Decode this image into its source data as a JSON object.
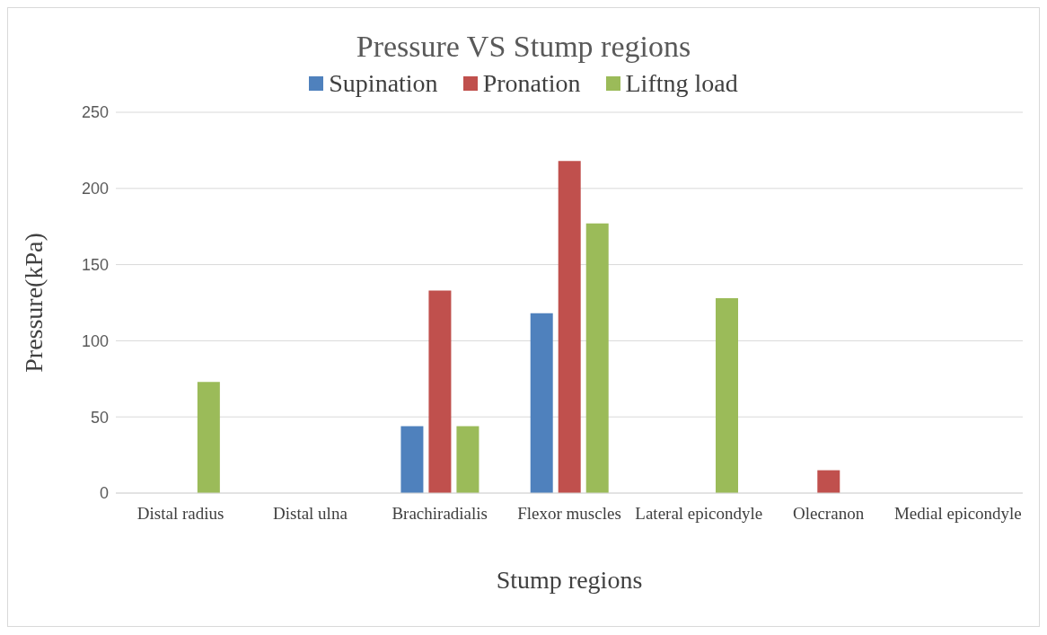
{
  "chart_data": {
    "type": "bar",
    "title": "Pressure VS Stump regions",
    "xlabel": "Stump regions",
    "ylabel": "Pressure(kPa)",
    "categories": [
      "Distal radius",
      "Distal ulna",
      "Brachiradialis",
      "Flexor muscles",
      "Lateral epicondyle",
      "Olecranon",
      "Medial epicondyle"
    ],
    "series": [
      {
        "name": "Supination",
        "color": "#4f81bd",
        "values": [
          0,
          0,
          44,
          118,
          0,
          0,
          0
        ]
      },
      {
        "name": "Pronation",
        "color": "#c0504d",
        "values": [
          0,
          0,
          133,
          218,
          0,
          15,
          0
        ]
      },
      {
        "name": "Liftng load",
        "color": "#9bbb59",
        "values": [
          73,
          0,
          44,
          177,
          128,
          0,
          0
        ]
      }
    ],
    "ylim": [
      0,
      250
    ],
    "yticks": [
      0,
      50,
      100,
      150,
      200,
      250
    ],
    "grid": "y",
    "legend": "top"
  }
}
